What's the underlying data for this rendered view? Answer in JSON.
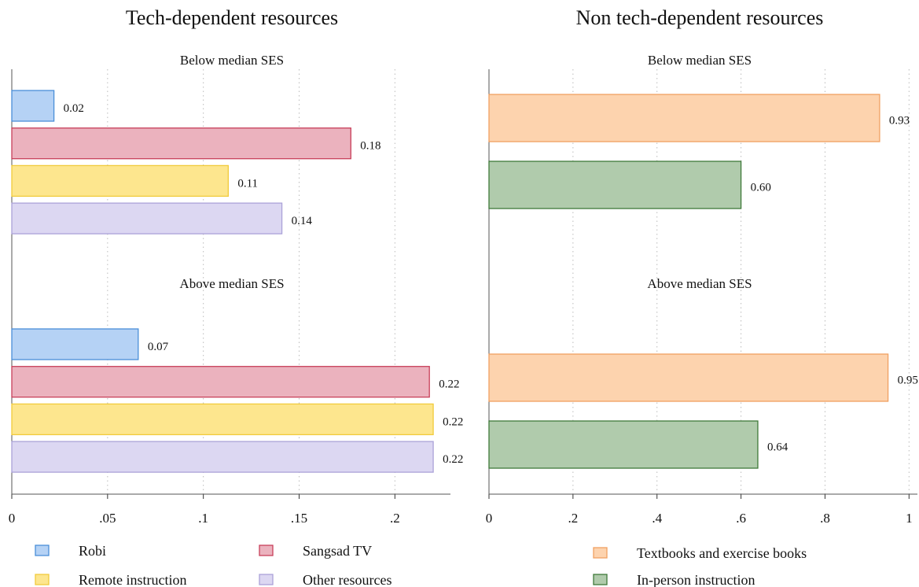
{
  "chart_data": [
    {
      "type": "hbar",
      "title": "Tech-dependent resources",
      "groups": [
        "Below median SES",
        "Above median SES"
      ],
      "series": [
        {
          "name": "Robi",
          "color": "#b5d2f5",
          "edgecolor": "#4a8fd8",
          "values": [
            0.022,
            0.066
          ],
          "value_labels": [
            "0.02",
            "0.07"
          ]
        },
        {
          "name": "Sangsad TV",
          "color": "#ebb2be",
          "edgecolor": "#c8405a",
          "values": [
            0.177,
            0.218
          ],
          "value_labels": [
            "0.18",
            "0.22"
          ]
        },
        {
          "name": "Remote instruction",
          "color": "#fde68e",
          "edgecolor": "#f1cb3c",
          "values": [
            0.113,
            0.22
          ],
          "value_labels": [
            "0.11",
            "0.22"
          ]
        },
        {
          "name": "Other resources",
          "color": "#dcd7f2",
          "edgecolor": "#aba2d8",
          "values": [
            0.141,
            0.22
          ],
          "value_labels": [
            "0.14",
            "0.22"
          ]
        }
      ],
      "xlim": [
        0,
        0.229
      ],
      "xticks": [
        0,
        {
          "value": 0.05,
          "label": ".05"
        },
        {
          "value": 0.1,
          "label": ".1"
        },
        {
          "value": 0.15,
          "label": ".15"
        },
        {
          "value": 0.2,
          "label": ".2"
        }
      ],
      "grid": true
    },
    {
      "type": "hbar",
      "title": "Non tech-dependent resources",
      "groups": [
        "Below median SES",
        "Above median SES"
      ],
      "series": [
        {
          "name": "Textbooks and exercise books",
          "color": "#fdd3ae",
          "edgecolor": "#f0a062",
          "values": [
            0.93,
            0.95
          ],
          "value_labels": [
            "0.93",
            "0.95"
          ]
        },
        {
          "name": "In-person instruction",
          "color": "#b0cbac",
          "edgecolor": "#3f7a3a",
          "values": [
            0.6,
            0.64
          ],
          "value_labels": [
            "0.60",
            "0.64"
          ]
        }
      ],
      "xlim": [
        0,
        1.02
      ],
      "xticks": [
        0,
        {
          "value": 0.2,
          "label": ".2"
        },
        {
          "value": 0.4,
          "label": ".4"
        },
        {
          "value": 0.6,
          "label": ".6"
        },
        {
          "value": 0.8,
          "label": ".8"
        },
        1
      ],
      "grid": true
    }
  ]
}
